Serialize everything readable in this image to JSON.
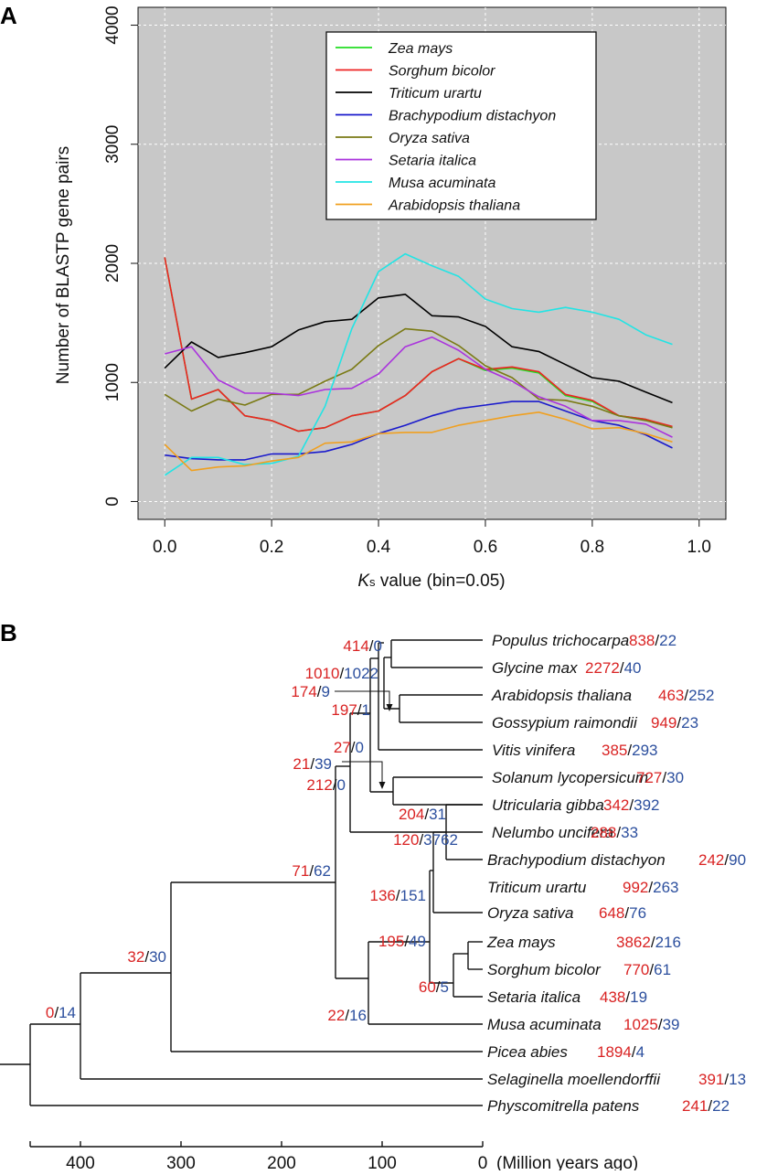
{
  "panel_a": {
    "label": "A",
    "chart_data": {
      "type": "line",
      "title": "",
      "xlabel_italic": "K",
      "xlabel_sub": "s",
      "xlabel_rest": " value (bin=0.05)",
      "ylabel": "Number of BLASTP gene pairs",
      "xlim": [
        -0.05,
        1.05
      ],
      "ylim": [
        -150,
        4150
      ],
      "xticks": [
        0,
        0.2,
        0.4,
        0.6,
        0.8,
        1.0
      ],
      "xtick_labels": [
        "0.0",
        "0.2",
        "0.4",
        "0.6",
        "0.8",
        "1.0"
      ],
      "yticks": [
        0,
        1000,
        2000,
        3000,
        4000
      ],
      "ytick_labels": [
        "0",
        "1000",
        "2000",
        "3000",
        "4000"
      ],
      "grid": true,
      "background": "#c8c8c8",
      "legend_position": "top-center",
      "x": [
        0,
        0.05,
        0.1,
        0.15,
        0.2,
        0.25,
        0.3,
        0.35,
        0.4,
        0.45,
        0.5,
        0.55,
        0.6,
        0.65,
        0.7,
        0.75,
        0.8,
        0.85,
        0.9,
        0.95
      ],
      "series": [
        {
          "name": "Zea mays",
          "color": "#22dd22",
          "values": [
            2050,
            860,
            940,
            720,
            680,
            590,
            620,
            720,
            760,
            890,
            1090,
            1200,
            1100,
            1120,
            1080,
            890,
            840,
            720,
            690,
            620
          ]
        },
        {
          "name": "Sorghum bicolor",
          "color": "#ee2222",
          "values": [
            2050,
            860,
            940,
            720,
            680,
            590,
            620,
            720,
            760,
            890,
            1090,
            1200,
            1110,
            1130,
            1090,
            900,
            850,
            720,
            690,
            630
          ]
        },
        {
          "name": "Triticum urartu",
          "color": "#000000",
          "values": [
            1120,
            1340,
            1210,
            1250,
            1300,
            1440,
            1510,
            1530,
            1710,
            1740,
            1560,
            1550,
            1470,
            1300,
            1260,
            1150,
            1040,
            1010,
            920,
            830
          ]
        },
        {
          "name": "Brachypodium distachyon",
          "color": "#1a1acc",
          "values": [
            390,
            360,
            350,
            350,
            400,
            400,
            420,
            480,
            570,
            640,
            720,
            780,
            810,
            840,
            840,
            760,
            680,
            640,
            560,
            450
          ]
        },
        {
          "name": "Oryza sativa",
          "color": "#7a7a14",
          "values": [
            900,
            760,
            860,
            810,
            900,
            900,
            1010,
            1110,
            1310,
            1450,
            1430,
            1310,
            1140,
            1040,
            860,
            850,
            800,
            720,
            680,
            620
          ]
        },
        {
          "name": "Setaria italica",
          "color": "#aa33dd",
          "values": [
            1240,
            1300,
            1020,
            910,
            910,
            890,
            940,
            950,
            1070,
            1300,
            1380,
            1270,
            1110,
            1010,
            880,
            800,
            680,
            680,
            650,
            540
          ]
        },
        {
          "name": "Musa acuminata",
          "color": "#22e4e4",
          "values": [
            220,
            370,
            370,
            310,
            320,
            380,
            800,
            1450,
            1930,
            2080,
            1980,
            1890,
            1700,
            1620,
            1590,
            1630,
            1590,
            1530,
            1400,
            1320
          ]
        },
        {
          "name": "Arabidopsis thaliana",
          "color": "#f0a020",
          "values": [
            480,
            260,
            290,
            300,
            340,
            370,
            490,
            500,
            570,
            580,
            580,
            640,
            680,
            720,
            750,
            690,
            610,
            620,
            570,
            500
          ]
        }
      ]
    }
  },
  "panel_b": {
    "label": "B",
    "red_color": "#d92323",
    "blue_color": "#2c4f9e",
    "axis_unit": "(Million years ago)",
    "axis_ticks": [
      "400",
      "300",
      "200",
      "100",
      "0"
    ],
    "leaves": [
      {
        "name": "Populus trichocarpa",
        "red": "838",
        "blue": "22"
      },
      {
        "name": "Glycine max",
        "red": "2272",
        "blue": "40"
      },
      {
        "name": "Arabidopsis thaliana",
        "red": "463",
        "blue": "252"
      },
      {
        "name": "Gossypium raimondii",
        "red": "949",
        "blue": "23"
      },
      {
        "name": "Vitis vinifera",
        "red": "385",
        "blue": "293"
      },
      {
        "name": "Solanum lycopersicum",
        "red": "727",
        "blue": "30"
      },
      {
        "name": "Utricularia gibba",
        "red": "342",
        "blue": "392"
      },
      {
        "name": "Nelumbo uncifera",
        "red": "288",
        "blue": "33"
      },
      {
        "name": "Brachypodium distachyon",
        "red": "242",
        "blue": "90"
      },
      {
        "name": "Triticum urartu",
        "red": "992",
        "blue": "263"
      },
      {
        "name": "Oryza sativa",
        "red": "648",
        "blue": "76"
      },
      {
        "name": "Zea mays",
        "red": "3862",
        "blue": "216"
      },
      {
        "name": "Sorghum bicolor",
        "red": "770",
        "blue": "61"
      },
      {
        "name": "Setaria italica",
        "red": "438",
        "blue": "19"
      },
      {
        "name": "Musa acuminata",
        "red": "1025",
        "blue": "39"
      },
      {
        "name": "Picea abies",
        "red": "1894",
        "blue": "4"
      },
      {
        "name": "Selaginella moellendorffii",
        "red": "391",
        "blue": "13"
      },
      {
        "name": "Physcomitrella patens",
        "red": "241",
        "blue": "22"
      }
    ],
    "nodes": [
      {
        "red": "414",
        "blue": "0"
      },
      {
        "red": "1010",
        "blue": "1022"
      },
      {
        "red": "174",
        "blue": "9"
      },
      {
        "red": "197",
        "blue": "1"
      },
      {
        "red": "27",
        "blue": "0"
      },
      {
        "red": "21",
        "blue": "39"
      },
      {
        "red": "212",
        "blue": "0"
      },
      {
        "red": "204",
        "blue": "31"
      },
      {
        "red": "120",
        "blue": "3762"
      },
      {
        "red": "71",
        "blue": "62"
      },
      {
        "red": "136",
        "blue": "151"
      },
      {
        "red": "195",
        "blue": "49"
      },
      {
        "red": "60",
        "blue": "5"
      },
      {
        "red": "22",
        "blue": "16"
      },
      {
        "red": "32",
        "blue": "30"
      },
      {
        "red": "0",
        "blue": "14"
      }
    ]
  }
}
